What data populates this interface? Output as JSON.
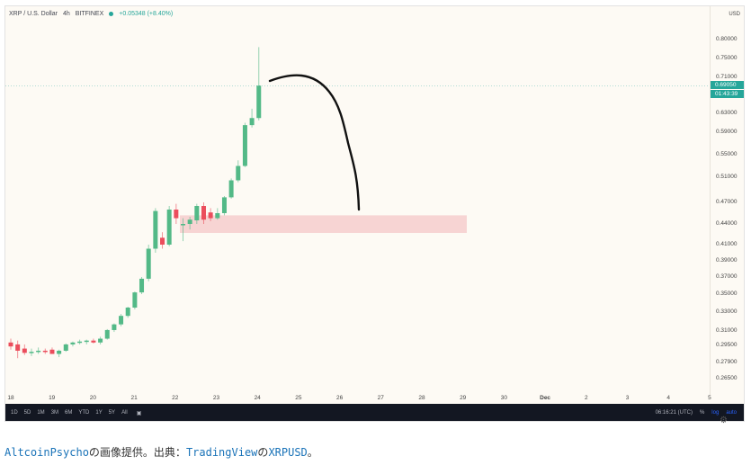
{
  "header": {
    "symbol": "XRP / U.S. Dollar",
    "interval": "4h",
    "exchange": "BITFINEX",
    "change": "+0.05348 (+8.40%)"
  },
  "price_axis": {
    "currency": "USD",
    "last_price": "0.69050",
    "countdown": "01:43:39"
  },
  "bottom_bar": {
    "ranges": [
      "1D",
      "5D",
      "1M",
      "3M",
      "6M",
      "YTD",
      "1Y",
      "5Y",
      "All"
    ],
    "time": "06:16:21 (UTC)",
    "percent": "%",
    "log": "log",
    "auto": "auto",
    "calendar_icon": "calendar-icon",
    "settings_icon": "gear-icon"
  },
  "caption": {
    "author_link": "AltcoinPsycho",
    "text1": "の画像提供。出典：",
    "source_link": "TradingView",
    "text2": "の",
    "pair_link": "XRPUSD",
    "text3": "。"
  },
  "colors": {
    "up": "#53b987",
    "down": "#eb4d5c",
    "zone": "#f6cccc",
    "accent": "#26a69a"
  },
  "chart_data": {
    "type": "candlestick",
    "y_ticks": [
      "0.80000",
      "0.75000",
      "0.71000",
      "0.69050",
      "0.63000",
      "0.59000",
      "0.55000",
      "0.51000",
      "0.47000",
      "0.44000",
      "0.41000",
      "0.39000",
      "0.37000",
      "0.35000",
      "0.33000",
      "0.31000",
      "0.29500",
      "0.27900",
      "0.26500"
    ],
    "x_ticks": [
      "18",
      "19",
      "20",
      "21",
      "22",
      "23",
      "24",
      "25",
      "26",
      "27",
      "28",
      "29",
      "30",
      "Dec",
      "2",
      "3",
      "4",
      "5"
    ],
    "candles": [
      {
        "o": 0.298,
        "h": 0.302,
        "l": 0.291,
        "c": 0.294
      },
      {
        "o": 0.296,
        "h": 0.3,
        "l": 0.283,
        "c": 0.29
      },
      {
        "o": 0.292,
        "h": 0.296,
        "l": 0.286,
        "c": 0.288
      },
      {
        "o": 0.288,
        "h": 0.292,
        "l": 0.285,
        "c": 0.289
      },
      {
        "o": 0.289,
        "h": 0.293,
        "l": 0.287,
        "c": 0.29
      },
      {
        "o": 0.29,
        "h": 0.292,
        "l": 0.287,
        "c": 0.289
      },
      {
        "o": 0.291,
        "h": 0.293,
        "l": 0.287,
        "c": 0.287
      },
      {
        "o": 0.287,
        "h": 0.291,
        "l": 0.284,
        "c": 0.29
      },
      {
        "o": 0.29,
        "h": 0.297,
        "l": 0.289,
        "c": 0.296
      },
      {
        "o": 0.296,
        "h": 0.299,
        "l": 0.294,
        "c": 0.298
      },
      {
        "o": 0.298,
        "h": 0.301,
        "l": 0.296,
        "c": 0.299
      },
      {
        "o": 0.299,
        "h": 0.301,
        "l": 0.296,
        "c": 0.3
      },
      {
        "o": 0.3,
        "h": 0.302,
        "l": 0.297,
        "c": 0.298
      },
      {
        "o": 0.298,
        "h": 0.304,
        "l": 0.296,
        "c": 0.302
      },
      {
        "o": 0.302,
        "h": 0.312,
        "l": 0.301,
        "c": 0.311
      },
      {
        "o": 0.311,
        "h": 0.318,
        "l": 0.309,
        "c": 0.317
      },
      {
        "o": 0.317,
        "h": 0.328,
        "l": 0.315,
        "c": 0.326
      },
      {
        "o": 0.326,
        "h": 0.336,
        "l": 0.324,
        "c": 0.335
      },
      {
        "o": 0.335,
        "h": 0.353,
        "l": 0.333,
        "c": 0.352
      },
      {
        "o": 0.352,
        "h": 0.37,
        "l": 0.35,
        "c": 0.368
      },
      {
        "o": 0.368,
        "h": 0.41,
        "l": 0.365,
        "c": 0.405
      },
      {
        "o": 0.405,
        "h": 0.462,
        "l": 0.4,
        "c": 0.458
      },
      {
        "o": 0.42,
        "h": 0.428,
        "l": 0.405,
        "c": 0.41
      },
      {
        "o": 0.41,
        "h": 0.465,
        "l": 0.408,
        "c": 0.46
      },
      {
        "o": 0.46,
        "h": 0.468,
        "l": 0.44,
        "c": 0.448
      },
      {
        "o": 0.438,
        "h": 0.448,
        "l": 0.415,
        "c": 0.44
      },
      {
        "o": 0.44,
        "h": 0.45,
        "l": 0.432,
        "c": 0.446
      },
      {
        "o": 0.445,
        "h": 0.468,
        "l": 0.44,
        "c": 0.465
      },
      {
        "o": 0.465,
        "h": 0.47,
        "l": 0.44,
        "c": 0.446
      },
      {
        "o": 0.456,
        "h": 0.462,
        "l": 0.444,
        "c": 0.448
      },
      {
        "o": 0.448,
        "h": 0.462,
        "l": 0.446,
        "c": 0.455
      },
      {
        "o": 0.455,
        "h": 0.48,
        "l": 0.452,
        "c": 0.478
      },
      {
        "o": 0.478,
        "h": 0.508,
        "l": 0.476,
        "c": 0.505
      },
      {
        "o": 0.505,
        "h": 0.54,
        "l": 0.502,
        "c": 0.53
      },
      {
        "o": 0.53,
        "h": 0.61,
        "l": 0.528,
        "c": 0.605
      },
      {
        "o": 0.605,
        "h": 0.64,
        "l": 0.6,
        "c": 0.62
      },
      {
        "o": 0.62,
        "h": 0.78,
        "l": 0.615,
        "c": 0.69
      }
    ],
    "zone": {
      "from": 0.427,
      "to": 0.452
    },
    "annotation": "hand-drawn arc from the latest high down to the pink support zone"
  }
}
